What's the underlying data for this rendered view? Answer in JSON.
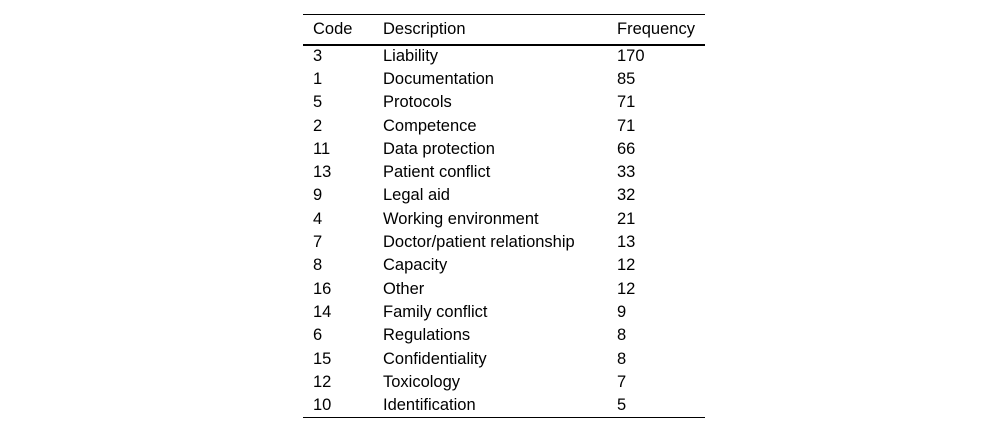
{
  "page": {
    "background_color": "#ffffff",
    "text_color": "#000000",
    "rule_color": "#000000"
  },
  "table": {
    "headers": [
      "Code",
      "Description",
      "Frequency"
    ],
    "rows": [
      {
        "code": "3",
        "description": "Liability",
        "frequency": "170"
      },
      {
        "code": "1",
        "description": "Documentation",
        "frequency": "85"
      },
      {
        "code": "5",
        "description": "Protocols",
        "frequency": "71"
      },
      {
        "code": "2",
        "description": "Competence",
        "frequency": "71"
      },
      {
        "code": "11",
        "description": "Data protection",
        "frequency": "66"
      },
      {
        "code": "13",
        "description": "Patient conflict",
        "frequency": "33"
      },
      {
        "code": "9",
        "description": "Legal aid",
        "frequency": "32"
      },
      {
        "code": "4",
        "description": "Working environment",
        "frequency": "21"
      },
      {
        "code": "7",
        "description": "Doctor/patient relationship",
        "frequency": "13"
      },
      {
        "code": "8",
        "description": "Capacity",
        "frequency": "12"
      },
      {
        "code": "16",
        "description": "Other",
        "frequency": "12"
      },
      {
        "code": "14",
        "description": "Family conflict",
        "frequency": "9"
      },
      {
        "code": "6",
        "description": "Regulations",
        "frequency": "8"
      },
      {
        "code": "15",
        "description": "Confidentiality",
        "frequency": "8"
      },
      {
        "code": "12",
        "description": "Toxicology",
        "frequency": "7"
      },
      {
        "code": "10",
        "description": "Identification",
        "frequency": "5"
      }
    ]
  }
}
